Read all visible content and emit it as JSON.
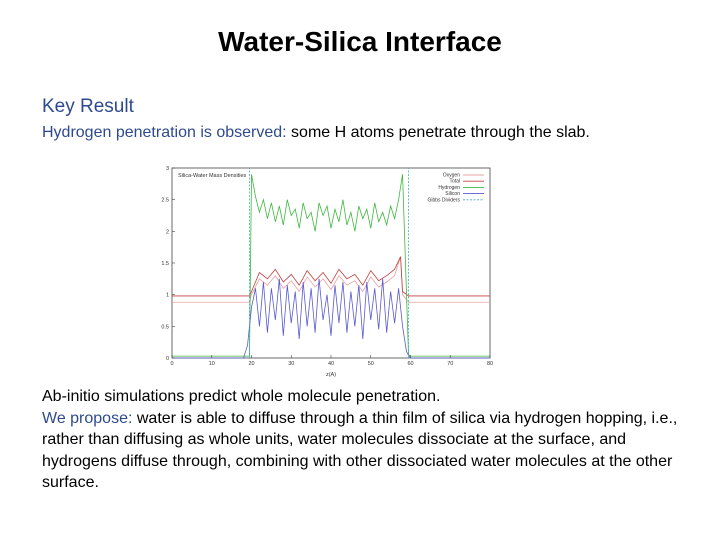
{
  "slide": {
    "title": "Water-Silica Interface",
    "key_result_heading": "Key Result",
    "key_result_lead": "Hydrogen penetration is observed:",
    "key_result_rest": " some H atoms penetrate through the slab.",
    "para1": "Ab-initio simulations predict whole molecule penetration.",
    "para2_lead": "We propose:",
    "para2_rest": " water is able to diffuse through a thin film of silica via hydrogen hopping, i.e., rather than diffusing as whole units, water molecules dissociate at the surface, and hydrogens diffuse through, combining with other dissociated water molecules at the other surface."
  },
  "chart_data": {
    "type": "line",
    "title": "Silica-Water Mass Densities",
    "xlabel": "z(A)",
    "ylabel": "",
    "xlim": [
      0,
      80
    ],
    "ylim": [
      0,
      3
    ],
    "x_ticks": [
      "0",
      "10",
      "20",
      "30",
      "40",
      "50",
      "60",
      "70",
      "80"
    ],
    "y_ticks": [
      "0",
      "0.5",
      "1",
      "1.5",
      "2",
      "2.5",
      "3"
    ],
    "legend_position": "top-right",
    "series": [
      {
        "name": "Oxygen",
        "color": "#e8a0a0",
        "x": [
          0,
          18,
          19.5,
          20,
          22,
          24,
          26,
          28,
          30,
          32,
          34,
          36,
          38,
          40,
          42,
          44,
          46,
          48,
          50,
          52,
          54,
          56,
          57.5,
          58,
          59.5,
          60,
          70,
          80
        ],
        "y": [
          0.88,
          0.88,
          0.88,
          1.0,
          1.25,
          1.15,
          1.3,
          1.1,
          1.22,
          1.05,
          1.28,
          1.12,
          1.25,
          1.08,
          1.3,
          1.15,
          1.22,
          1.05,
          1.28,
          1.12,
          1.2,
          1.3,
          1.6,
          1.0,
          0.88,
          0.88,
          0.88,
          0.88
        ]
      },
      {
        "name": "Total",
        "color": "#c04040",
        "x": [
          0,
          18,
          19.5,
          20,
          22,
          24,
          26,
          28,
          30,
          32,
          34,
          36,
          38,
          40,
          42,
          44,
          46,
          48,
          50,
          52,
          54,
          56,
          57.5,
          58,
          59.5,
          60,
          70,
          80
        ],
        "y": [
          0.98,
          0.98,
          0.98,
          1.05,
          1.35,
          1.25,
          1.4,
          1.2,
          1.32,
          1.15,
          1.38,
          1.22,
          1.35,
          1.18,
          1.4,
          1.25,
          1.32,
          1.15,
          1.38,
          1.22,
          1.3,
          1.4,
          1.6,
          1.05,
          0.98,
          0.98,
          0.98,
          0.98
        ]
      },
      {
        "name": "Hydrogen",
        "color": "#3cb83c",
        "x": [
          0,
          18,
          19.5,
          20,
          21,
          22,
          23,
          24,
          25,
          26,
          27,
          28,
          29,
          30,
          31,
          32,
          33,
          34,
          35,
          36,
          37,
          38,
          39,
          40,
          41,
          42,
          43,
          44,
          45,
          46,
          47,
          48,
          49,
          50,
          51,
          52,
          53,
          54,
          55,
          56,
          57,
          57.5,
          58,
          59.5,
          60,
          70,
          80
        ],
        "y": [
          0.03,
          0.03,
          0.03,
          2.9,
          2.55,
          2.3,
          2.5,
          2.2,
          2.45,
          2.15,
          2.4,
          2.1,
          2.5,
          2.25,
          2.35,
          2.05,
          2.45,
          2.2,
          2.3,
          2.0,
          2.45,
          2.25,
          2.4,
          2.05,
          2.35,
          2.15,
          2.5,
          2.1,
          2.3,
          2.0,
          2.4,
          2.2,
          2.35,
          2.05,
          2.45,
          2.15,
          2.3,
          2.1,
          2.4,
          2.2,
          2.5,
          2.7,
          2.9,
          0.05,
          0.03,
          0.03,
          0.03
        ]
      },
      {
        "name": "Silicon",
        "color": "#5a5ad0",
        "x": [
          0,
          18,
          19,
          20,
          21,
          22,
          23,
          24,
          25,
          26,
          27,
          28,
          29,
          30,
          31,
          32,
          33,
          34,
          35,
          36,
          37,
          38,
          39,
          40,
          41,
          42,
          43,
          44,
          45,
          46,
          47,
          48,
          49,
          50,
          51,
          52,
          53,
          54,
          55,
          56,
          57,
          58,
          59,
          60,
          70,
          80
        ],
        "y": [
          0,
          0,
          0.2,
          0.8,
          1.1,
          0.5,
          1.2,
          0.4,
          1.1,
          0.6,
          1.25,
          0.35,
          1.15,
          0.55,
          1.05,
          0.3,
          1.2,
          0.5,
          1.1,
          0.4,
          1.25,
          0.6,
          1.0,
          0.35,
          1.15,
          0.55,
          1.2,
          0.4,
          1.05,
          0.5,
          1.15,
          0.3,
          1.2,
          0.6,
          1.1,
          0.45,
          1.25,
          0.4,
          1.05,
          0.55,
          1.1,
          0.5,
          0.1,
          0,
          0,
          0
        ]
      },
      {
        "name": "Gibbs Dividers",
        "color": "#40b0b0",
        "x": [
          19.5,
          19.5,
          null,
          59.5,
          59.5
        ],
        "y": [
          0,
          3,
          null,
          0,
          3
        ]
      }
    ]
  }
}
